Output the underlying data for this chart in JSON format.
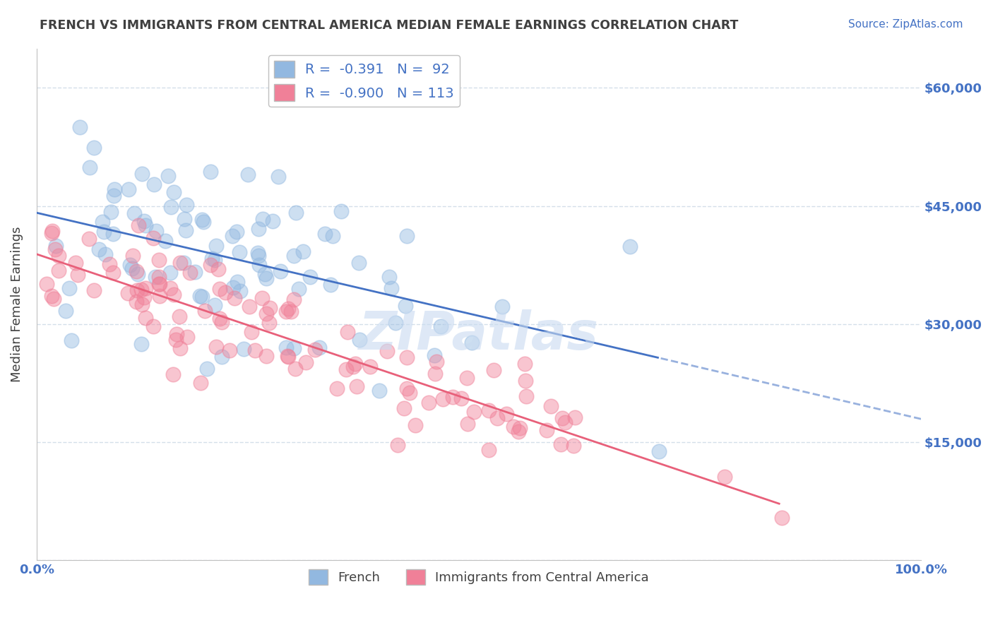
{
  "title": "FRENCH VS IMMIGRANTS FROM CENTRAL AMERICA MEDIAN FEMALE EARNINGS CORRELATION CHART",
  "source": "Source: ZipAtlas.com",
  "ylabel": "Median Female Earnings",
  "y_ticks": [
    0,
    15000,
    30000,
    45000,
    60000
  ],
  "y_tick_labels": [
    "",
    "$15,000",
    "$30,000",
    "$45,000",
    "$60,000"
  ],
  "x_min": 0.0,
  "x_max": 100.0,
  "y_min": 0,
  "y_max": 65000,
  "watermark": "ZIPatlas",
  "french_R": -0.391,
  "french_N": 92,
  "immigrants_R": -0.9,
  "immigrants_N": 113,
  "french_color": "#92b8e0",
  "immigrants_color": "#f08098",
  "french_line_color": "#4472c4",
  "immigrants_line_color": "#e8607a",
  "background_color": "#ffffff",
  "grid_color": "#d0dce8",
  "title_color": "#404040",
  "axis_label_color": "#4472c4",
  "watermark_color": "#c8daf0",
  "french_seed": 42,
  "immigrants_seed": 7
}
